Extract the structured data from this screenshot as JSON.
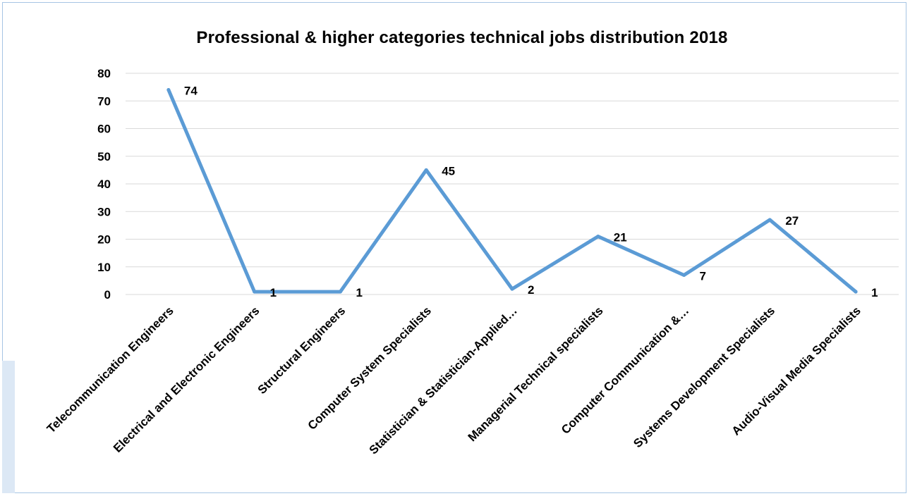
{
  "chart_data": {
    "type": "line",
    "title": "Professional & higher categories technical jobs distribution 2018",
    "xlabel": "",
    "ylabel": "",
    "categories": [
      "Telecommunication Engineers",
      "Electrical and Electronic Engineers",
      "Structural Engineers",
      "Computer System Specialists",
      "Statistician & Statistician-Applied…",
      "Managerial Technical specialists",
      "Computer Communication &…",
      "Systems Development Specialists",
      "Audio-Visual Media Specialists"
    ],
    "series": [
      {
        "values": [
          74,
          1,
          1,
          45,
          2,
          21,
          7,
          27,
          1
        ]
      }
    ],
    "ylim": [
      0,
      80
    ],
    "yticks": [
      0,
      10,
      20,
      30,
      40,
      50,
      60,
      70,
      80
    ],
    "grid": true,
    "legend": "none",
    "data_labels": true,
    "line_color": "#5b9bd5",
    "grid_color": "#d9d9d9"
  }
}
